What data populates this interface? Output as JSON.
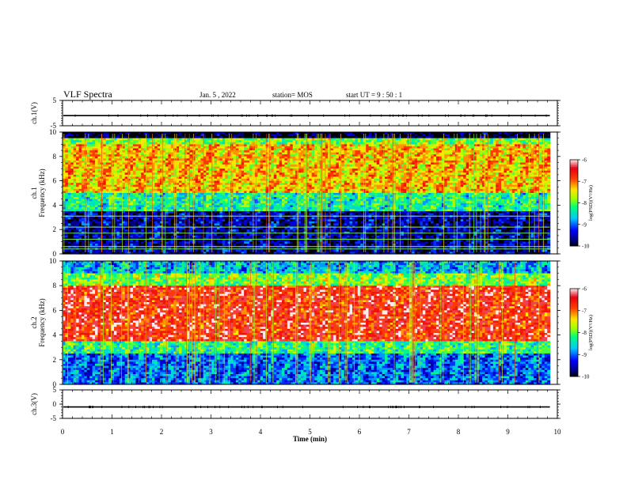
{
  "header": {
    "title": "VLF Spectra",
    "date": "Jan. 5  , 2022",
    "station": "station= MOS",
    "start": "start  UT  =   9  : 50 : 1"
  },
  "chart_data": [
    {
      "type": "line",
      "name_label": "ch.1(V)",
      "ylabel": "ch.1(V)",
      "ylim": [
        -5,
        5
      ],
      "yticks": [
        5,
        -5
      ],
      "xlim": [
        0,
        10
      ],
      "level": -1,
      "x_end": 9.85
    },
    {
      "type": "heatmap",
      "ylabel": "ch.1\nFrequency (kHz)",
      "ylabel_lines": [
        "ch.1",
        "Frequency (kHz)"
      ],
      "ylim": [
        0,
        10
      ],
      "yticks": [
        0,
        2,
        4,
        6,
        8,
        10
      ],
      "xlim": [
        0,
        10
      ],
      "x_end": 9.85,
      "colorbar": {
        "label": "log(PSD)(V²/Hz)",
        "range": [
          -10,
          -6
        ],
        "ticks": [
          -6,
          -7,
          -8,
          -9,
          -10
        ]
      },
      "bands": [
        {
          "from": 0.0,
          "to": 3.5,
          "level": -9.6
        },
        {
          "from": 3.5,
          "to": 5.0,
          "level": -8.3
        },
        {
          "from": 5.0,
          "to": 9.0,
          "level": -7.3
        },
        {
          "from": 9.0,
          "to": 9.5,
          "level": -7.9
        },
        {
          "from": 9.5,
          "to": 10.0,
          "level": -10.0
        }
      ],
      "lines_khz": [
        0.4,
        0.6,
        1.2,
        1.7,
        2.2,
        3.1
      ]
    },
    {
      "type": "heatmap",
      "ylabel": "ch.2\nFrequency (kHz)",
      "ylabel_lines": [
        "ch.2",
        "Frequency (kHz)"
      ],
      "ylim": [
        0,
        10
      ],
      "yticks": [
        0,
        2,
        4,
        6,
        8,
        10
      ],
      "xlim": [
        0,
        10
      ],
      "x_end": 9.85,
      "colorbar": {
        "label": "log(PSD)(V²/Hz)",
        "range": [
          -10,
          -6
        ],
        "ticks": [
          -6,
          -7,
          -8,
          -9,
          -10
        ]
      },
      "bands": [
        {
          "from": 0.0,
          "to": 2.5,
          "level": -9.0
        },
        {
          "from": 2.5,
          "to": 3.5,
          "level": -8.2
        },
        {
          "from": 3.5,
          "to": 8.0,
          "level": -6.6
        },
        {
          "from": 8.0,
          "to": 9.0,
          "level": -7.9
        },
        {
          "from": 9.0,
          "to": 10.0,
          "level": -8.7
        }
      ]
    },
    {
      "type": "line",
      "ylabel": "ch.3(V)",
      "ylim": [
        -5,
        5
      ],
      "yticks": [
        5,
        0,
        -5
      ],
      "xlim": [
        0,
        10
      ],
      "level": -1,
      "x_end": 9.85,
      "xticks": [
        0,
        1,
        2,
        3,
        4,
        5,
        6,
        7,
        8,
        9,
        10
      ],
      "xlabel": "Time  (min)"
    }
  ]
}
